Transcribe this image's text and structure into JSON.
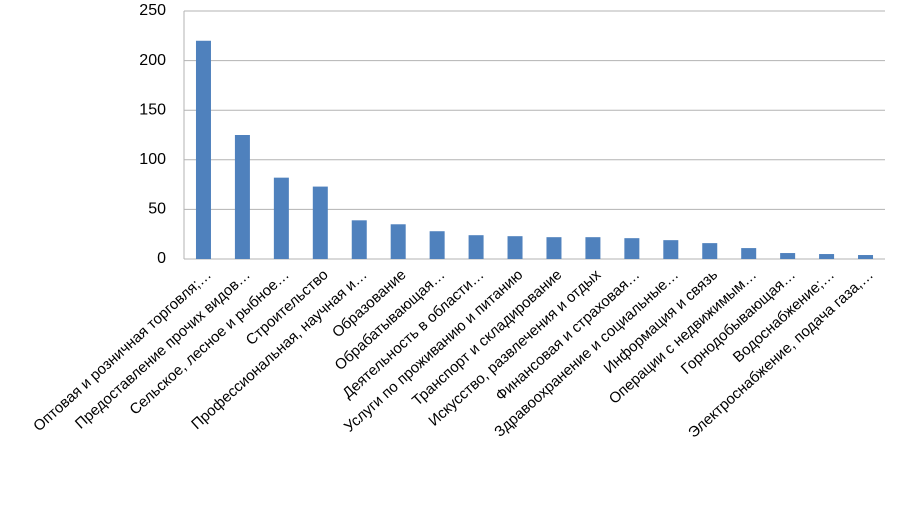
{
  "chart_data": {
    "type": "bar",
    "categories": [
      "Оптовая и розничная торговля;…",
      "Предоставление прочих видов…",
      "Сельское, лесное и рыбное…",
      "Строительство",
      "Профессиональная,  научная и…",
      "Образование",
      "Обрабатывающая…",
      "Деятельность в области…",
      "Услуги по проживанию  и питанию",
      "Транспорт и складирование",
      "Искусство, развлечения  и отдых",
      "Финансовая и страховая…",
      "Здравоохранение  и социальные…",
      "Информация  и связь",
      "Операции  с недвижимым…",
      "Горнодобывающая…",
      "Водоснабжение;…",
      "Электроснабжение,  подача газа,…"
    ],
    "values": [
      220,
      125,
      82,
      73,
      39,
      35,
      28,
      24,
      23,
      22,
      22,
      21,
      19,
      16,
      11,
      6,
      5,
      4
    ],
    "color": "#4f81bd",
    "ylim": [
      0,
      250
    ],
    "yticks": [
      0,
      50,
      100,
      150,
      200,
      250
    ],
    "grid": true
  }
}
